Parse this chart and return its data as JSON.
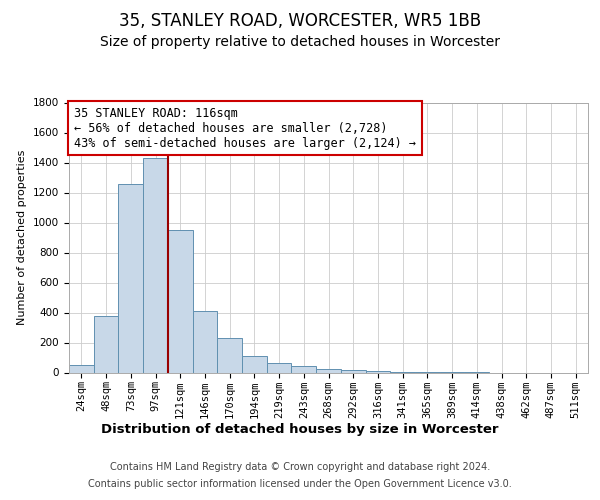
{
  "title": "35, STANLEY ROAD, WORCESTER, WR5 1BB",
  "subtitle": "Size of property relative to detached houses in Worcester",
  "xlabel": "Distribution of detached houses by size in Worcester",
  "ylabel": "Number of detached properties",
  "footer_line1": "Contains HM Land Registry data © Crown copyright and database right 2024.",
  "footer_line2": "Contains public sector information licensed under the Open Government Licence v3.0.",
  "annotation_line1": "35 STANLEY ROAD: 116sqm",
  "annotation_line2": "← 56% of detached houses are smaller (2,728)",
  "annotation_line3": "43% of semi-detached houses are larger (2,124) →",
  "bar_color": "#c8d8e8",
  "bar_edge_color": "#6090b0",
  "vline_color": "#990000",
  "grid_color": "#cccccc",
  "background_color": "#ffffff",
  "categories": [
    "24sqm",
    "48sqm",
    "73sqm",
    "97sqm",
    "121sqm",
    "146sqm",
    "170sqm",
    "194sqm",
    "219sqm",
    "243sqm",
    "268sqm",
    "292sqm",
    "316sqm",
    "341sqm",
    "365sqm",
    "389sqm",
    "414sqm",
    "438sqm",
    "462sqm",
    "487sqm",
    "511sqm"
  ],
  "values": [
    50,
    380,
    1260,
    1430,
    950,
    410,
    230,
    110,
    65,
    45,
    25,
    15,
    8,
    4,
    3,
    2,
    1,
    0,
    0,
    0,
    0
  ],
  "ylim": [
    0,
    1800
  ],
  "yticks": [
    0,
    200,
    400,
    600,
    800,
    1000,
    1200,
    1400,
    1600,
    1800
  ],
  "vline_x_index": 4,
  "title_fontsize": 12,
  "subtitle_fontsize": 10,
  "xlabel_fontsize": 9.5,
  "ylabel_fontsize": 8,
  "tick_fontsize": 7.5,
  "annotation_fontsize": 8.5,
  "footer_fontsize": 7
}
